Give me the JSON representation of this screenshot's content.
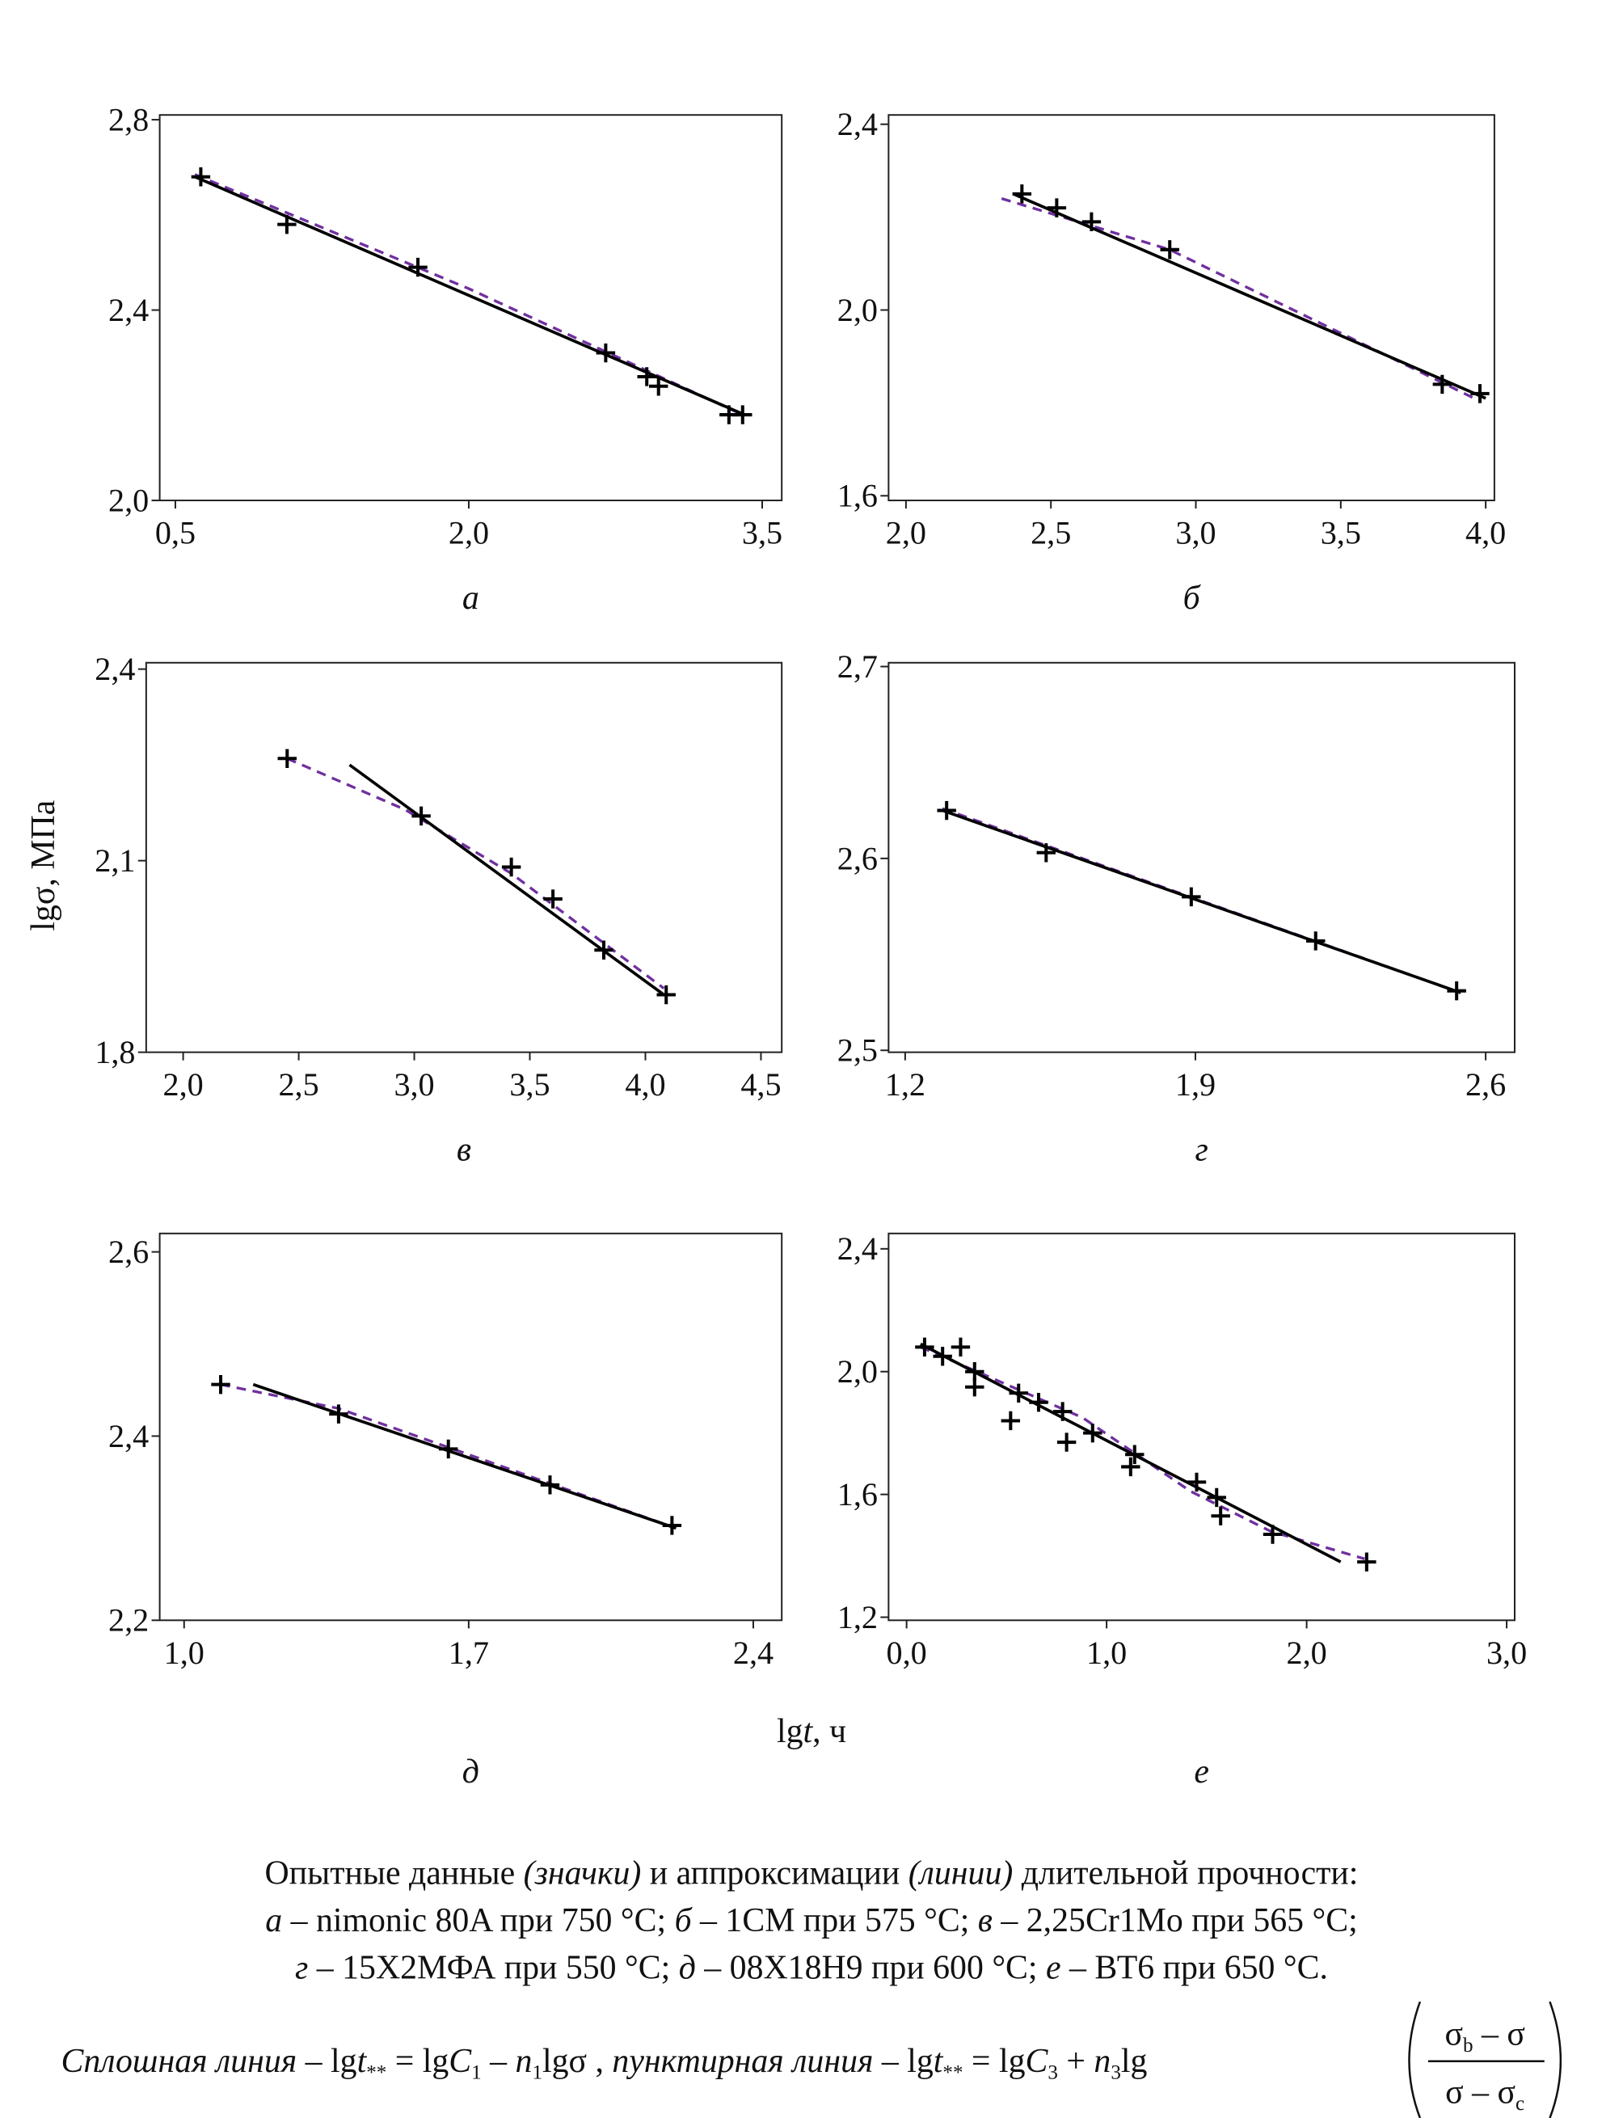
{
  "y_label": "lgσ, МПа",
  "x_label": [
    "lg",
    "t",
    ", ч"
  ],
  "chart_data": [
    {
      "type": "scatter",
      "label": "а",
      "xlim": [
        0.42,
        3.6
      ],
      "ylim": [
        2.0,
        2.81
      ],
      "xticks": [
        {
          "value": 0.5,
          "label": "0,5"
        },
        {
          "value": 2.0,
          "label": "2,0"
        },
        {
          "value": 3.5,
          "label": "3,5"
        }
      ],
      "yticks": [
        {
          "value": 2.0,
          "label": "2,0"
        },
        {
          "value": 2.4,
          "label": "2,4"
        },
        {
          "value": 2.8,
          "label": "2,8"
        }
      ],
      "markers": {
        "color": "#000000",
        "x": [
          0.63,
          1.07,
          1.74,
          2.7,
          2.91,
          2.97,
          3.33,
          3.4
        ],
        "y": [
          2.68,
          2.58,
          2.49,
          2.31,
          2.26,
          2.24,
          2.18,
          2.18
        ]
      },
      "solid": {
        "color": "#000000",
        "x": [
          0.6,
          3.41
        ],
        "y": [
          2.68,
          2.18
        ]
      },
      "dashed": {
        "color": "#7030a0",
        "x": [
          0.6,
          2.0,
          3.4
        ],
        "y": [
          2.685,
          2.445,
          2.18
        ]
      }
    },
    {
      "type": "scatter",
      "label": "б",
      "xlim": [
        1.94,
        4.03
      ],
      "ylim": [
        1.59,
        2.42
      ],
      "xticks": [
        {
          "value": 2.0,
          "label": "2,0"
        },
        {
          "value": 2.5,
          "label": "2,5"
        },
        {
          "value": 3.0,
          "label": "3,0"
        },
        {
          "value": 3.5,
          "label": "3,5"
        },
        {
          "value": 4.0,
          "label": "4,0"
        }
      ],
      "yticks": [
        {
          "value": 1.6,
          "label": "1,6"
        },
        {
          "value": 2.0,
          "label": "2,0"
        },
        {
          "value": 2.4,
          "label": "2,4"
        }
      ],
      "markers": {
        "color": "#000000",
        "x": [
          2.4,
          2.52,
          2.64,
          2.91,
          3.85,
          3.98
        ],
        "y": [
          2.25,
          2.22,
          2.19,
          2.13,
          1.84,
          1.82
        ]
      },
      "solid": {
        "color": "#000000",
        "x": [
          2.37,
          4.0
        ],
        "y": [
          2.25,
          1.81
        ]
      },
      "dashed": {
        "color": "#7030a0",
        "x": [
          2.33,
          2.91,
          3.96
        ],
        "y": [
          2.24,
          2.13,
          1.81
        ]
      }
    },
    {
      "type": "scatter",
      "label": "в",
      "xlim": [
        1.84,
        4.59
      ],
      "ylim": [
        1.8,
        2.41
      ],
      "xticks": [
        {
          "value": 2.0,
          "label": "2,0"
        },
        {
          "value": 2.5,
          "label": "2,5"
        },
        {
          "value": 3.0,
          "label": "3,0"
        },
        {
          "value": 3.5,
          "label": "3,5"
        },
        {
          "value": 4.0,
          "label": "4,0"
        },
        {
          "value": 4.5,
          "label": "4,5"
        }
      ],
      "yticks": [
        {
          "value": 1.8,
          "label": "1,8"
        },
        {
          "value": 2.1,
          "label": "2,1"
        },
        {
          "value": 2.4,
          "label": "2,4"
        }
      ],
      "markers": {
        "color": "#000000",
        "x": [
          2.45,
          3.03,
          3.42,
          3.6,
          3.82,
          4.09
        ],
        "y": [
          2.26,
          2.17,
          2.09,
          2.04,
          1.96,
          1.89
        ]
      },
      "solid": {
        "color": "#000000",
        "x": [
          2.72,
          4.08
        ],
        "y": [
          2.25,
          1.89
        ]
      },
      "dashed": {
        "color": "#7030a0",
        "x": [
          2.45,
          2.96,
          3.42,
          4.08
        ],
        "y": [
          2.26,
          2.18,
          2.08,
          1.9
        ]
      }
    },
    {
      "type": "scatter",
      "label": "г",
      "xlim": [
        1.16,
        2.67
      ],
      "ylim": [
        2.499,
        2.702
      ],
      "xticks": [
        {
          "value": 1.2,
          "label": "1,2"
        },
        {
          "value": 1.9,
          "label": "1,9"
        },
        {
          "value": 2.6,
          "label": "2,6"
        }
      ],
      "yticks": [
        {
          "value": 2.5,
          "label": "2,5"
        },
        {
          "value": 2.6,
          "label": "2,6"
        },
        {
          "value": 2.7,
          "label": "2,7"
        }
      ],
      "markers": {
        "color": "#000000",
        "x": [
          1.3,
          1.54,
          1.89,
          2.19,
          2.53
        ],
        "y": [
          2.625,
          2.603,
          2.58,
          2.557,
          2.531
        ]
      },
      "solid": {
        "color": "#000000",
        "x": [
          1.29,
          2.54
        ],
        "y": [
          2.625,
          2.53
        ]
      },
      "dashed": {
        "color": "#7030a0",
        "x": [
          1.29,
          1.9,
          2.54
        ],
        "y": [
          2.626,
          2.579,
          2.53
        ]
      }
    },
    {
      "type": "scatter",
      "label": "д",
      "xlim": [
        0.94,
        2.47
      ],
      "ylim": [
        2.2,
        2.62
      ],
      "xticks": [
        {
          "value": 1.0,
          "label": "1,0"
        },
        {
          "value": 1.7,
          "label": "1,7"
        },
        {
          "value": 2.4,
          "label": "2,4"
        }
      ],
      "yticks": [
        {
          "value": 2.2,
          "label": "2,2"
        },
        {
          "value": 2.4,
          "label": "2,4"
        },
        {
          "value": 2.6,
          "label": "2,6"
        }
      ],
      "markers": {
        "color": "#000000",
        "x": [
          1.09,
          1.38,
          1.65,
          1.9,
          2.2
        ],
        "y": [
          2.456,
          2.424,
          2.386,
          2.347,
          2.303
        ]
      },
      "solid": {
        "color": "#000000",
        "x": [
          1.17,
          2.21
        ],
        "y": [
          2.456,
          2.3
        ]
      },
      "dashed": {
        "color": "#7030a0",
        "x": [
          1.09,
          1.38,
          2.21
        ],
        "y": [
          2.456,
          2.43,
          2.3
        ]
      }
    },
    {
      "type": "scatter",
      "label": "е",
      "xlim": [
        -0.09,
        3.04
      ],
      "ylim": [
        1.19,
        2.45
      ],
      "xticks": [
        {
          "value": 0.0,
          "label": "0,0"
        },
        {
          "value": 1.0,
          "label": "1,0"
        },
        {
          "value": 2.0,
          "label": "2,0"
        },
        {
          "value": 3.0,
          "label": "3,0"
        }
      ],
      "yticks": [
        {
          "value": 1.2,
          "label": "1,2"
        },
        {
          "value": 1.6,
          "label": "1,6"
        },
        {
          "value": 2.0,
          "label": "2,0"
        },
        {
          "value": 2.4,
          "label": "2,4"
        }
      ],
      "markers": {
        "color": "#000000",
        "x": [
          0.09,
          0.18,
          0.27,
          0.34,
          0.34,
          0.52,
          0.56,
          0.66,
          0.78,
          0.8,
          0.93,
          1.14,
          1.12,
          1.45,
          1.55,
          1.57,
          1.83,
          2.3
        ],
        "y": [
          2.08,
          2.05,
          2.08,
          2.0,
          1.95,
          1.84,
          1.93,
          1.9,
          1.87,
          1.77,
          1.8,
          1.73,
          1.69,
          1.64,
          1.59,
          1.53,
          1.47,
          1.38
        ]
      },
      "solid": {
        "color": "#000000",
        "x": [
          0.07,
          2.17
        ],
        "y": [
          2.09,
          1.38
        ]
      },
      "dashed": {
        "color": "#7030a0",
        "x": [
          0.07,
          0.88,
          1.42,
          1.82,
          2.29
        ],
        "y": [
          2.08,
          1.85,
          1.61,
          1.48,
          1.39
        ]
      }
    }
  ],
  "caption": {
    "lines": [
      [
        "Опытные данные ",
        "(значки)",
        " и аппроксимации ",
        "(линии)",
        " длительной прочности:"
      ],
      [
        "а",
        " – nimonic 80A при 750 °С; ",
        "б",
        " – 1CM при 575 °С; ",
        "в",
        " – 2,25Cr1Mo при 565 °С;"
      ],
      [
        "г",
        " – 15Х2МФА при 550 °С; ",
        "д",
        " – 08Х18Н9 при 600 °С; ",
        "е",
        " – ВТ6 при 650 °С."
      ]
    ]
  },
  "formula": {
    "solid_label": "Сплошная линия – ",
    "solid": [
      "lg",
      "t",
      "**",
      " = lg",
      "C",
      "1",
      " – ",
      "n",
      "1",
      "lgσ"
    ],
    "separator": " , ",
    "dashed_label": "пунктирная линия – ",
    "dashed": [
      "lg",
      "t",
      "**",
      " = lg",
      "C",
      "3",
      " + ",
      "n",
      "3",
      "lg"
    ],
    "numerator": [
      "σ",
      "b",
      " – σ"
    ],
    "denominator": [
      "σ",
      " – σ",
      "c"
    ]
  }
}
